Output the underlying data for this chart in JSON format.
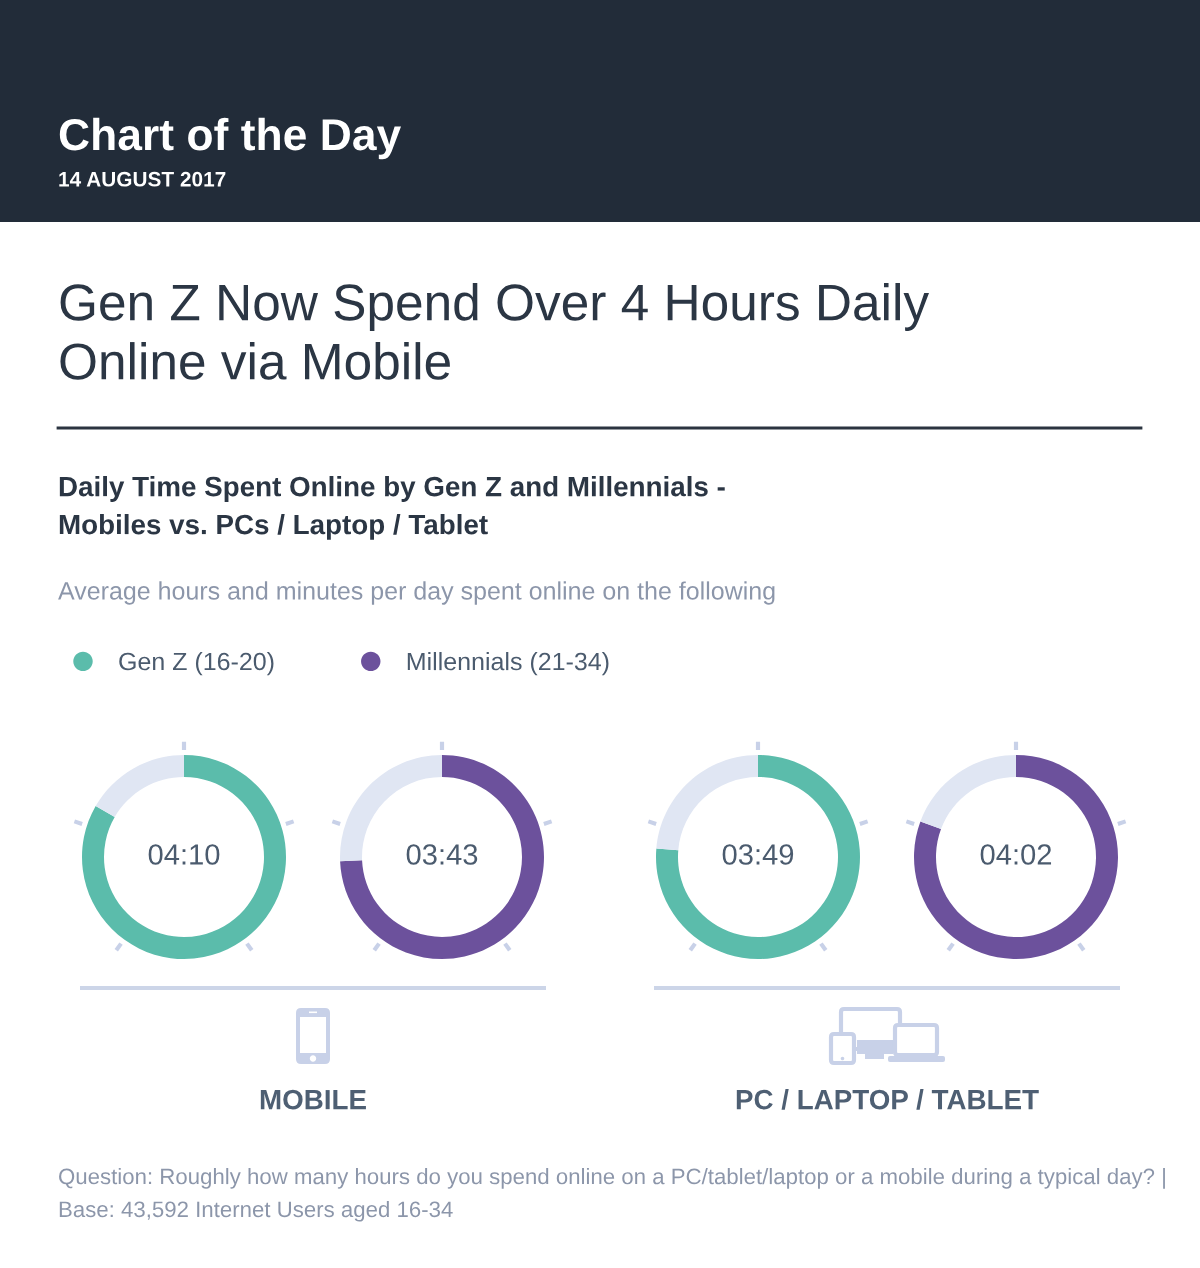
{
  "chart_data": [
    {
      "type": "donut",
      "title": "Gen Z Now Spend Over 4 Hours Daily\nOnline via Mobile",
      "subtitle": "Daily Time Spent Online by Gen Z and Millennials -\nMobiles vs. PCs / Laptop / Tablet",
      "annotations": [
        "Chart of the Day",
        "14 AUGUST 2017",
        "Average hours and minutes per day spent online on the following",
        "Question: Roughly how many hours do you spend online on a PC/tablet/laptop or a mobile during a typical day? | Base: 43,592 Internet Users aged 16-34"
      ],
      "xlabel": "MOBILE",
      "legend": "top left",
      "categories": [
        "Gen Z (16-20)",
        null
      ],
      "values": [
        4.1667,
        0.8333
      ],
      "colors": [
        "#5bbcab",
        "#e0e6f3"
      ],
      "value_labels": [
        "04:10",
        null
      ]
    },
    {
      "type": "donut",
      "legend": "top right",
      "categories": [
        "Millennials (21-34)",
        null
      ],
      "values": [
        3.7167,
        1.2833
      ],
      "colors": [
        "#6c519c",
        "#e0e6f3"
      ],
      "value_labels": [
        "03:43",
        null
      ]
    },
    {
      "type": "donut",
      "xlabel": "PC / LAPTOP / TABLET",
      "categories": [
        null,
        null
      ],
      "values": [
        3.8167,
        1.1833
      ],
      "colors": [
        "#5bbcab",
        "#e0e6f3"
      ],
      "value_labels": [
        "03:49",
        null
      ]
    },
    {
      "type": "donut",
      "categories": [
        null,
        null
      ],
      "values": [
        4.0333,
        0.9667
      ],
      "colors": [
        "#6c519c",
        "#e0e6f3"
      ],
      "value_labels": [
        "04:02",
        null
      ]
    }
  ]
}
